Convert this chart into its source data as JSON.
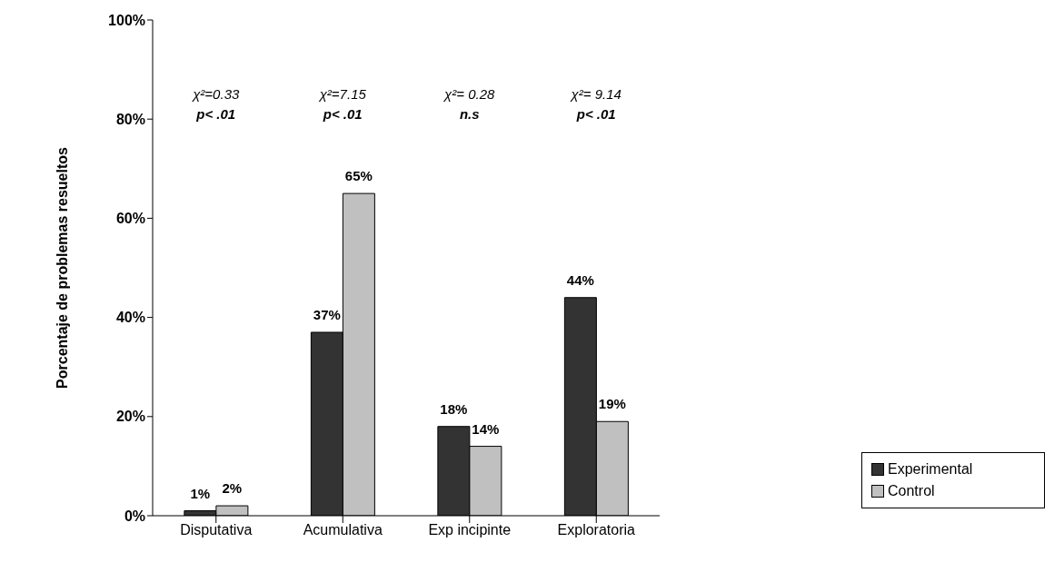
{
  "chart_data": {
    "type": "bar",
    "ylabel": "Porcentaje de problemas resueltos",
    "categories": [
      "Disputativa",
      "Acumulativa",
      "Exp incipinte",
      "Exploratoria"
    ],
    "series": [
      {
        "name": "Experimental",
        "color": "#333333",
        "values": [
          1,
          37,
          18,
          44
        ],
        "value_labels": [
          "1%",
          "37%",
          "18%",
          "44%"
        ]
      },
      {
        "name": "Control",
        "color": "#c0c0c0",
        "values": [
          2,
          65,
          14,
          19
        ],
        "value_labels": [
          "2%",
          "65%",
          "14%",
          "19%"
        ]
      }
    ],
    "ylim": [
      0,
      100
    ],
    "yticks": [
      {
        "value": 0,
        "label": "0%"
      },
      {
        "value": 20,
        "label": "20%"
      },
      {
        "value": 40,
        "label": "40%"
      },
      {
        "value": 60,
        "label": "60%"
      },
      {
        "value": 80,
        "label": "80%"
      },
      {
        "value": 100,
        "label": "100%"
      }
    ],
    "grid": false,
    "legend": "bottom right",
    "annotations": [
      "χ²=0.33",
      "p< .01",
      "χ²=7.15",
      "p< .01",
      "χ²= 0.28",
      "n.s",
      "χ²= 9.14",
      "p< .01"
    ]
  }
}
